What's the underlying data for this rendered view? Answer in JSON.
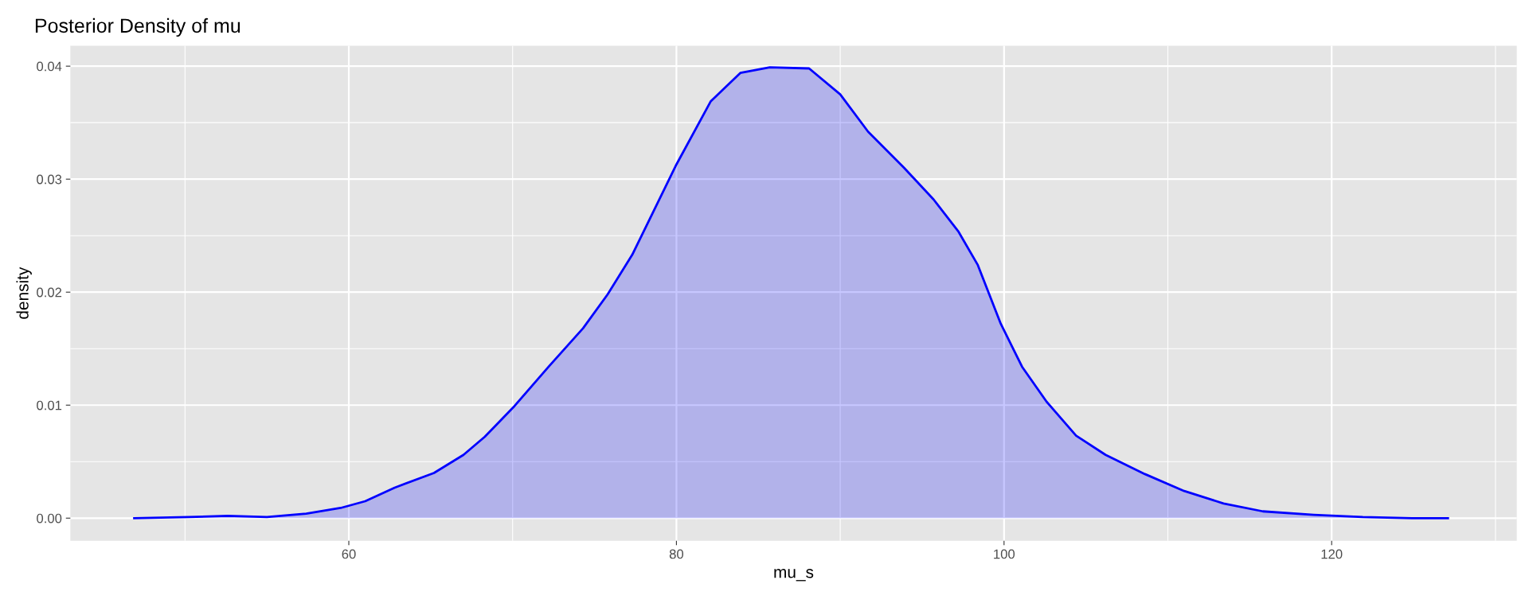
{
  "chart_data": {
    "type": "area",
    "title": "Posterior Density of mu",
    "xlabel": "mu_s",
    "ylabel": "density",
    "xlim": [
      43,
      131.3
    ],
    "ylim": [
      -0.002,
      0.0418
    ],
    "xticks": [
      60,
      80,
      100,
      120
    ],
    "yticks": [
      {
        "value": 0,
        "label": "0.00"
      },
      {
        "value": 0.01,
        "label": "0.01"
      },
      {
        "value": 0.02,
        "label": "0.02"
      },
      {
        "value": 0.03,
        "label": "0.03"
      },
      {
        "value": 0.04,
        "label": "0.04"
      }
    ],
    "grid": true,
    "x": [
      46.9,
      50.2,
      52.6,
      55,
      57.4,
      59.5,
      61,
      62.8,
      65.2,
      67,
      68.3,
      70.1,
      72.2,
      74.3,
      75.8,
      77.3,
      80,
      82.1,
      83.9,
      85.7,
      88.1,
      90,
      91.7,
      93.9,
      95.7,
      97.2,
      98.4,
      99.8,
      101.1,
      102.6,
      104.4,
      106.2,
      108.6,
      111,
      113.4,
      115.8,
      118.9,
      121.9,
      124.9,
      127.1
    ],
    "series": [
      {
        "color": "#0000ff",
        "values": [
          0,
          0.0001,
          0.0002,
          0.0001,
          0.0004,
          0.0009,
          0.0015,
          0.0027,
          0.004,
          0.0056,
          0.0072,
          0.0099,
          0.0134,
          0.0168,
          0.0198,
          0.0233,
          0.0313,
          0.0369,
          0.0394,
          0.0399,
          0.0398,
          0.0375,
          0.0342,
          0.031,
          0.0282,
          0.0254,
          0.0224,
          0.0172,
          0.0134,
          0.0103,
          0.0073,
          0.0056,
          0.0039,
          0.0024,
          0.0013,
          0.0006,
          0.0003,
          0.0001,
          0,
          0
        ]
      }
    ]
  }
}
